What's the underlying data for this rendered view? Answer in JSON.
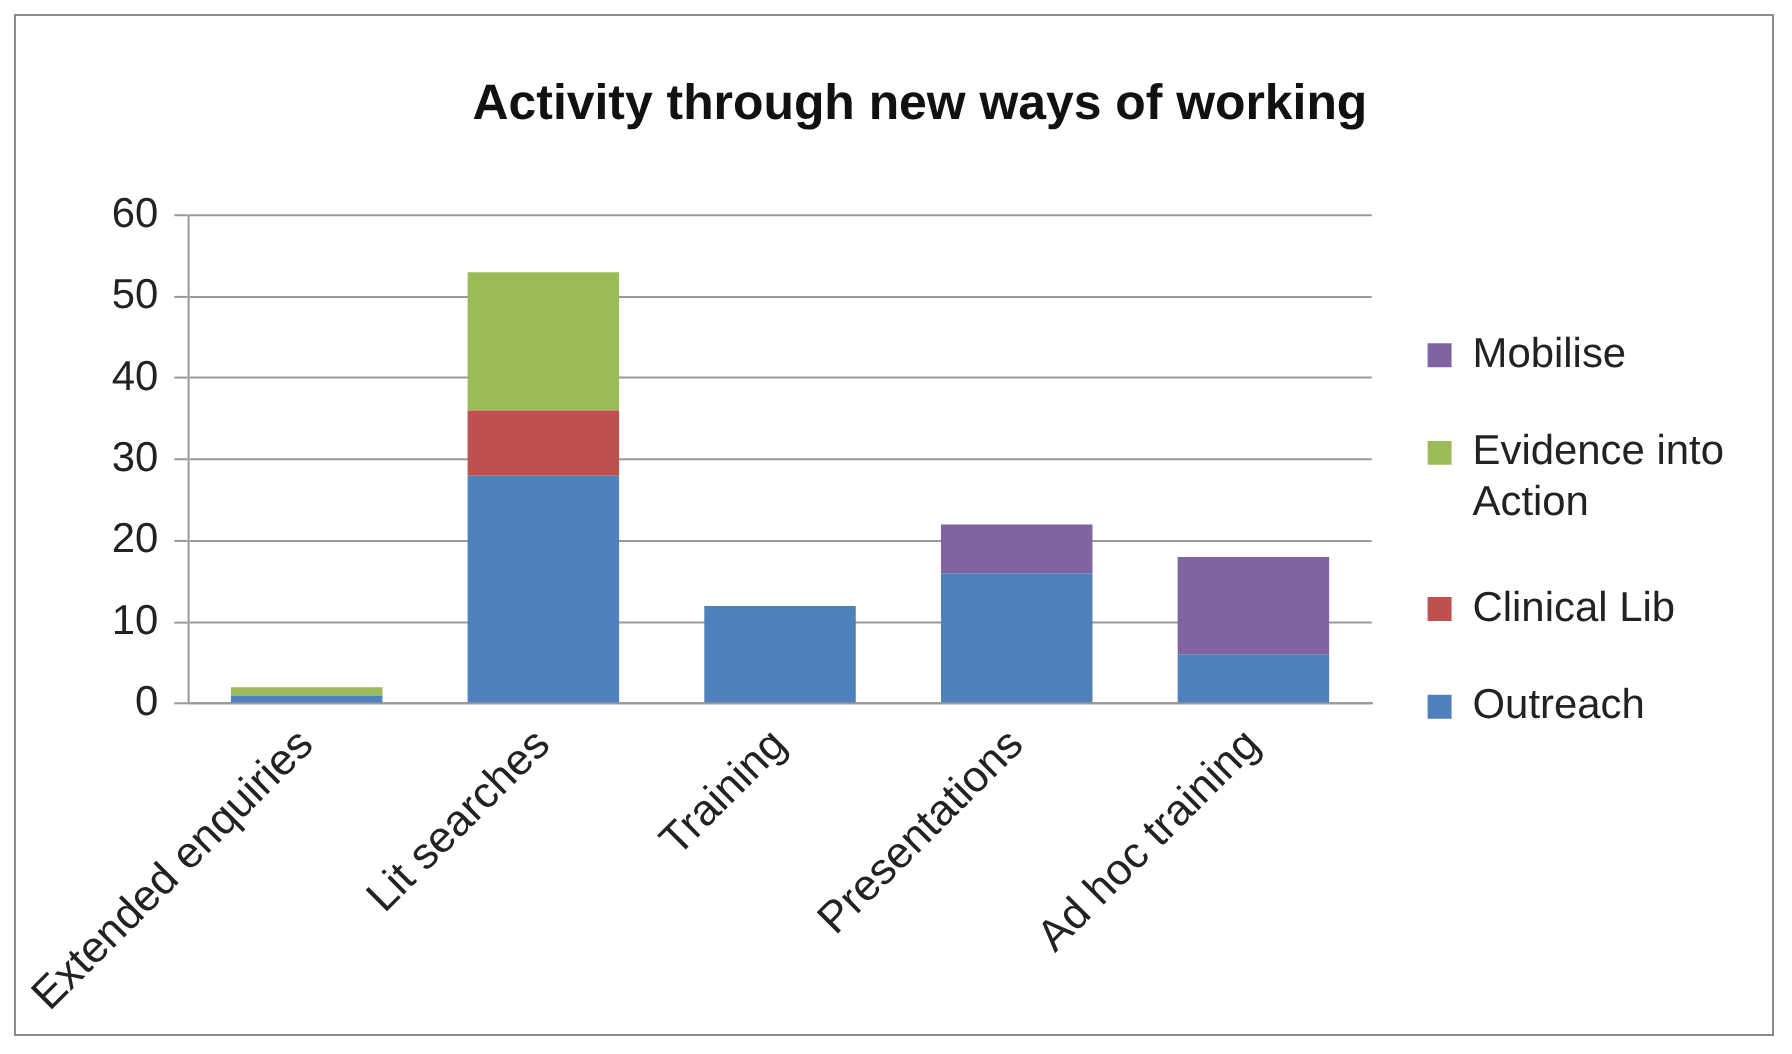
{
  "chart_data": {
    "type": "bar",
    "title": "Activity through new ways of working",
    "categories": [
      "Extended enquiries",
      "Lit searches",
      "Training",
      "Presentations",
      "Ad hoc training"
    ],
    "series": [
      {
        "name": "Outreach",
        "color": "#4f81bd",
        "values": [
          1,
          28,
          12,
          16,
          6
        ]
      },
      {
        "name": "Clinical Lib",
        "color": "#c0504d",
        "values": [
          0,
          8,
          0,
          0,
          0
        ]
      },
      {
        "name": "Evidence into Action",
        "color": "#9bbb59",
        "values": [
          1,
          17,
          0,
          0,
          0
        ]
      },
      {
        "name": "Mobilise",
        "color": "#8064a2",
        "values": [
          0,
          0,
          0,
          6,
          12
        ]
      }
    ],
    "stacked": true,
    "ylim": [
      0,
      60
    ],
    "yticks": [
      0,
      10,
      20,
      30,
      40,
      50,
      60
    ],
    "grid": "y",
    "legend": "right"
  }
}
